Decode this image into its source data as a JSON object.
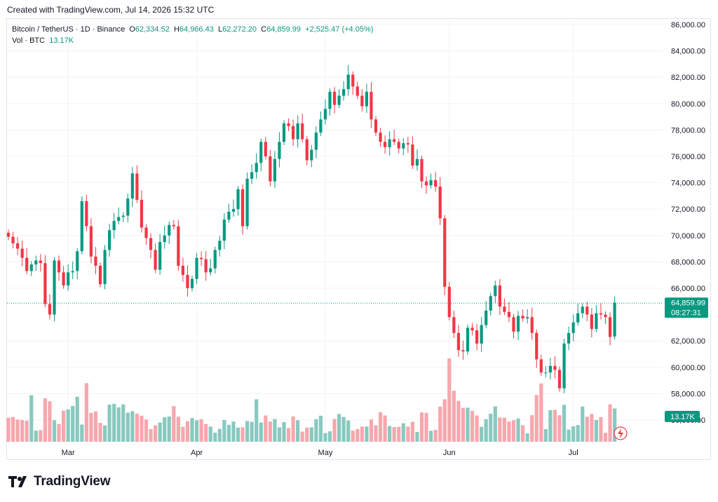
{
  "header": {
    "created": "Created with TradingView.com, Jul 14, 2026 15:32 UTC"
  },
  "legend": {
    "symbol": "Bitcoin / TetherUS · 1D · Binance",
    "open_label": "O",
    "open": "62,334.52",
    "high_label": "H",
    "high": "64,966.43",
    "low_label": "L",
    "low": "62,272.20",
    "close_label": "C",
    "close": "64,859.99",
    "change": "+2,525.47 (+4.05%)",
    "vol_label": "Vol · BTC",
    "vol": "13.17K"
  },
  "brand": {
    "name": "TradingView"
  },
  "colors": {
    "up": "#089981",
    "down": "#f23645",
    "up_vol": "#89c9bf",
    "down_vol": "#f6a7ad",
    "grid": "#f0f3fa",
    "text": "#131722"
  },
  "chart_data": {
    "type": "candlestick",
    "symbol": "BTC/USDT",
    "interval": "1D",
    "ylim": [
      56000,
      86000
    ],
    "y_ticks": [
      "86,000.00",
      "84,000.00",
      "82,000.00",
      "80,000.00",
      "78,000.00",
      "76,000.00",
      "74,000.00",
      "72,000.00",
      "70,000.00",
      "68,000.00",
      "66,000.00",
      "62,000.00",
      "60,000.00",
      "58,000.00",
      "56,000.00"
    ],
    "x_ticks": [
      "Mar",
      "Apr",
      "May",
      "Jun",
      "Jul"
    ],
    "last_price": "64,859.99",
    "countdown": "08:27:31",
    "last_volume": "13.17K",
    "closes": [
      69900,
      69400,
      69000,
      68300,
      67300,
      67800,
      68100,
      67900,
      64800,
      64000,
      68100,
      67200,
      66200,
      67200,
      67300,
      68800,
      72600,
      70700,
      68400,
      67700,
      66300,
      68900,
      70400,
      71100,
      71400,
      71500,
      72800,
      74700,
      72700,
      70600,
      69800,
      68900,
      67400,
      69500,
      70000,
      70800,
      70700,
      67700,
      67000,
      66000,
      66700,
      68300,
      68200,
      67200,
      67500,
      68900,
      69600,
      71200,
      71800,
      72000,
      73500,
      70700,
      74300,
      74800,
      75500,
      77100,
      76000,
      74100,
      75800,
      77100,
      78500,
      78300,
      77300,
      78500,
      77300,
      75700,
      76500,
      77800,
      78800,
      79600,
      80900,
      79900,
      80600,
      81100,
      82200,
      81300,
      80600,
      79800,
      80900,
      78800,
      77800,
      77100,
      76700,
      77300,
      77100,
      76600,
      77000,
      76900,
      75300,
      75800,
      74100,
      73800,
      74200,
      73700,
      71300,
      66100,
      63800,
      62600,
      61300,
      61200,
      63000,
      62800,
      61800,
      63200,
      64300,
      65400,
      66200,
      64600,
      64200,
      63800,
      62700,
      63900,
      63700,
      63800,
      62600,
      60600,
      59600,
      59600,
      60100,
      59800,
      58400,
      61800,
      62600,
      63400,
      64100,
      64600,
      64000,
      62900,
      64100,
      64000,
      63800,
      62300,
      64900
    ],
    "volumes": [
      9.5,
      9.8,
      8.8,
      8.6,
      8.3,
      18.4,
      4.4,
      4.6,
      17.2,
      16.0,
      8.5,
      7.0,
      12.3,
      12.8,
      14.2,
      17.8,
      6.8,
      23.2,
      11.4,
      12.0,
      7.5,
      6.4,
      14.7,
      15.0,
      13.6,
      14.8,
      11.5,
      12.1,
      11.1,
      10.3,
      8.8,
      5.0,
      6.5,
      7.6,
      9.7,
      10.0,
      14.1,
      9.9,
      5.9,
      8.1,
      9.4,
      8.5,
      8.9,
      7.0,
      6.0,
      3.6,
      5.1,
      8.6,
      6.7,
      8.0,
      5.6,
      5.7,
      8.2,
      7.9,
      16.8,
      7.6,
      10.4,
      8.0,
      9.0,
      5.7,
      7.8,
      5.4,
      10.0,
      8.5,
      4.0,
      5.6,
      5.7,
      8.9,
      10.3,
      3.4,
      4.1,
      9.0,
      11.0,
      9.8,
      8.4,
      4.4,
      5.0,
      6.0,
      6.0,
      8.8,
      6.5,
      11.7,
      10.4,
      6.2,
      5.8,
      5.9,
      7.3,
      6.0,
      7.9,
      3.9,
      11.6,
      11.4,
      4.3,
      4.7,
      13.9,
      16.8,
      33.0,
      20.2,
      16.2,
      13.4,
      13.5,
      12.2,
      10.4,
      5.9,
      8.9,
      11.1,
      14.0,
      9.6,
      9.5,
      8.0,
      8.5,
      9.2,
      6.5,
      3.3,
      10.5,
      18.5,
      23.1,
      5.0,
      12.5,
      12.6,
      10.5,
      14.6,
      4.8,
      6.1,
      6.6,
      13.9,
      9.9,
      11.0,
      8.6,
      9.7,
      3.5,
      14.8,
      13.17
    ]
  }
}
